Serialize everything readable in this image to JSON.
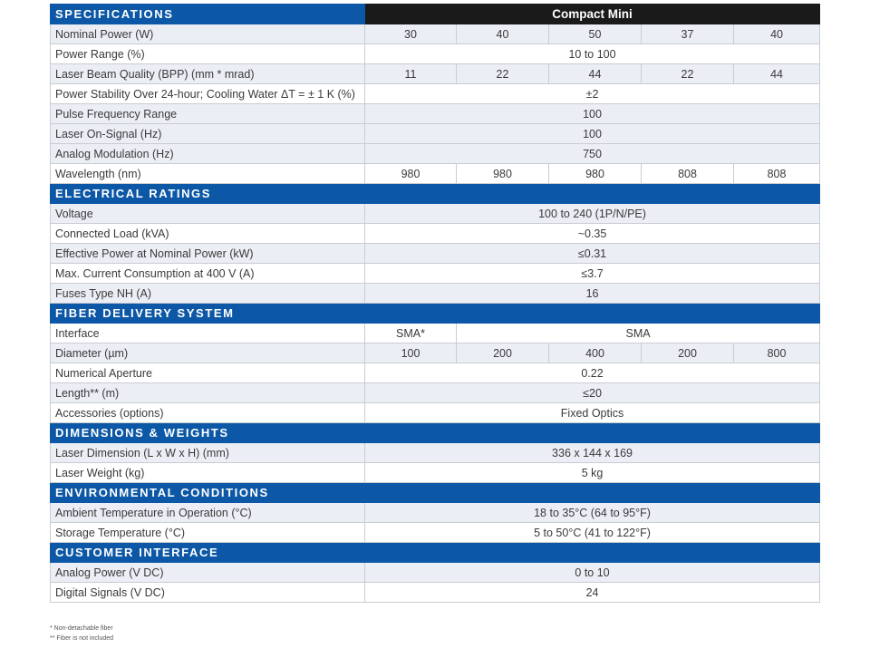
{
  "sections": [
    {
      "title": "SPECIFICATIONS",
      "header_right": "Compact Mini",
      "rows": [
        {
          "label": "Nominal Power (W)",
          "values": [
            "30",
            "40",
            "50",
            "37",
            "40"
          ]
        },
        {
          "label": "Power Range (%)",
          "merged": "10 to 100"
        },
        {
          "label": "Laser Beam Quality (BPP) (mm * mrad)",
          "values": [
            "11",
            "22",
            "44",
            "22",
            "44"
          ]
        },
        {
          "label": "Power Stability Over 24-hour; Cooling Water ΔT = ± 1 K (%)",
          "merged": "±2"
        },
        {
          "label": "Pulse Frequency Range",
          "merged": "100"
        },
        {
          "label": "Laser On-Signal (Hz)",
          "merged": "100"
        },
        {
          "label": "Analog Modulation (Hz)",
          "merged": "750"
        },
        {
          "label": "Wavelength (nm)",
          "values": [
            "980",
            "980",
            "980",
            "808",
            "808"
          ]
        }
      ]
    },
    {
      "title": "ELECTRICAL RATINGS",
      "rows": [
        {
          "label": "Voltage",
          "merged": "100 to 240 (1P/N/PE)"
        },
        {
          "label": "Connected Load (kVA)",
          "merged": "~0.35"
        },
        {
          "label": "Effective Power at Nominal Power (kW)",
          "merged": "≤0.31"
        },
        {
          "label": "Max. Current Consumption at 400 V (A)",
          "merged": "≤3.7"
        },
        {
          "label": "Fuses Type NH (A)",
          "merged": "16"
        }
      ]
    },
    {
      "title": "FIBER DELIVERY SYSTEM",
      "rows": [
        {
          "label": "Interface",
          "split": [
            "SMA*",
            "SMA"
          ]
        },
        {
          "label": "Diameter (µm)",
          "values": [
            "100",
            "200",
            "400",
            "200",
            "800"
          ]
        },
        {
          "label": "Numerical Aperture",
          "merged": "0.22"
        },
        {
          "label": "Length** (m)",
          "merged": "≤20"
        },
        {
          "label": "Accessories (options)",
          "merged": "Fixed Optics"
        }
      ]
    },
    {
      "title": "DIMENSIONS & WEIGHTS",
      "rows": [
        {
          "label": "Laser Dimension (L x W x H) (mm)",
          "merged": "336 x 144 x 169"
        },
        {
          "label": "Laser Weight (kg)",
          "merged": "5 kg"
        }
      ]
    },
    {
      "title": "ENVIRONMENTAL CONDITIONS",
      "rows": [
        {
          "label": "Ambient Temperature in Operation (°C)",
          "merged": "18 to 35°C (64 to 95°F)"
        },
        {
          "label": "Storage Temperature (°C)",
          "merged": "5 to 50°C (41 to 122°F)"
        }
      ]
    },
    {
      "title": "CUSTOMER INTERFACE",
      "rows": [
        {
          "label": "Analog Power (V DC)",
          "merged": "0 to 10"
        },
        {
          "label": "Digital Signals (V DC)",
          "merged": "24"
        }
      ]
    }
  ],
  "footnotes": [
    "* Non-detachable fiber",
    "** Fiber is not included"
  ]
}
